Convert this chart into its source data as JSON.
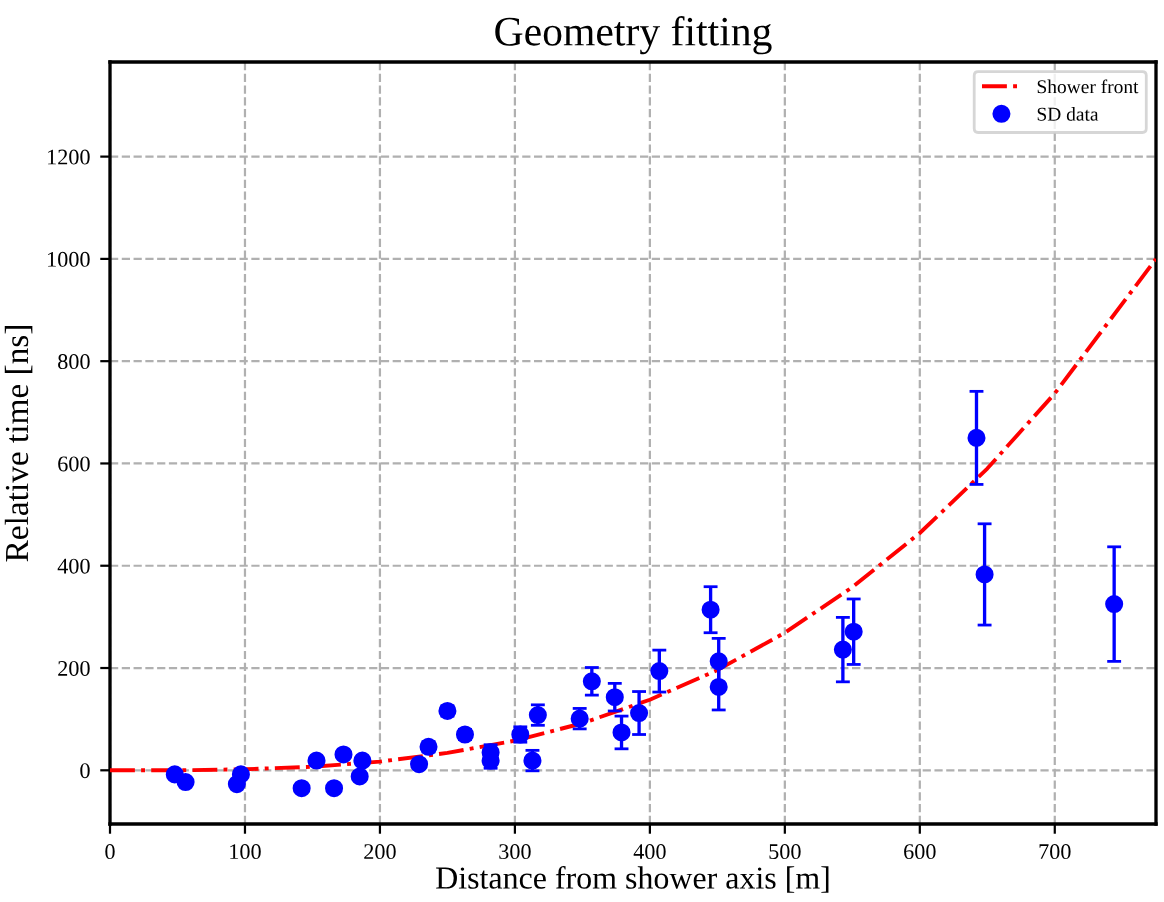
{
  "chart_data": {
    "type": "scatter",
    "title": "Geometry fitting",
    "xlabel": "Distance from shower axis [m]",
    "ylabel": "Relative time [ns]",
    "xlim": [
      0,
      775
    ],
    "ylim": [
      -105,
      1385
    ],
    "xticks": [
      0,
      100,
      200,
      300,
      400,
      500,
      600,
      700
    ],
    "yticks": [
      0,
      200,
      400,
      600,
      800,
      1000,
      1200
    ],
    "grid": true,
    "legend": "top right",
    "series": [
      {
        "name": "Shower front",
        "type": "line",
        "color": "#ff0000",
        "line_style": "dashdot",
        "marker": "none",
        "x": [
          0,
          50,
          100,
          150,
          200,
          250,
          300,
          350,
          400,
          450,
          500,
          550,
          600,
          650,
          700,
          775
        ],
        "values": [
          0,
          0,
          2,
          7,
          17,
          34,
          58,
          92,
          138,
          196,
          269,
          358,
          464,
          590,
          737,
          1000
        ]
      },
      {
        "name": "SD data",
        "color": "#0000ff",
        "marker": "circle",
        "x": [
          48,
          56,
          94,
          97,
          142,
          153,
          166,
          173,
          185,
          187,
          229,
          236,
          250,
          263,
          282,
          282,
          304,
          313,
          317,
          348,
          357,
          374,
          379,
          392,
          407,
          445,
          451,
          451,
          543,
          551,
          642,
          648,
          744
        ],
        "values": [
          -8,
          -23,
          -27,
          -8,
          -35,
          19,
          -35,
          31,
          -12,
          19,
          12,
          46,
          116,
          70,
          35,
          19,
          70,
          19,
          108,
          101,
          174,
          143,
          74,
          112,
          194,
          314,
          213,
          163,
          236,
          271,
          650,
          383,
          325
        ],
        "errors": [
          5,
          5,
          5,
          5,
          5,
          5,
          5,
          5,
          5,
          5,
          8,
          10,
          10,
          10,
          15,
          15,
          15,
          20,
          20,
          20,
          27,
          27,
          32,
          42,
          41,
          45,
          45,
          45,
          63,
          64,
          91,
          99,
          112
        ]
      }
    ]
  }
}
